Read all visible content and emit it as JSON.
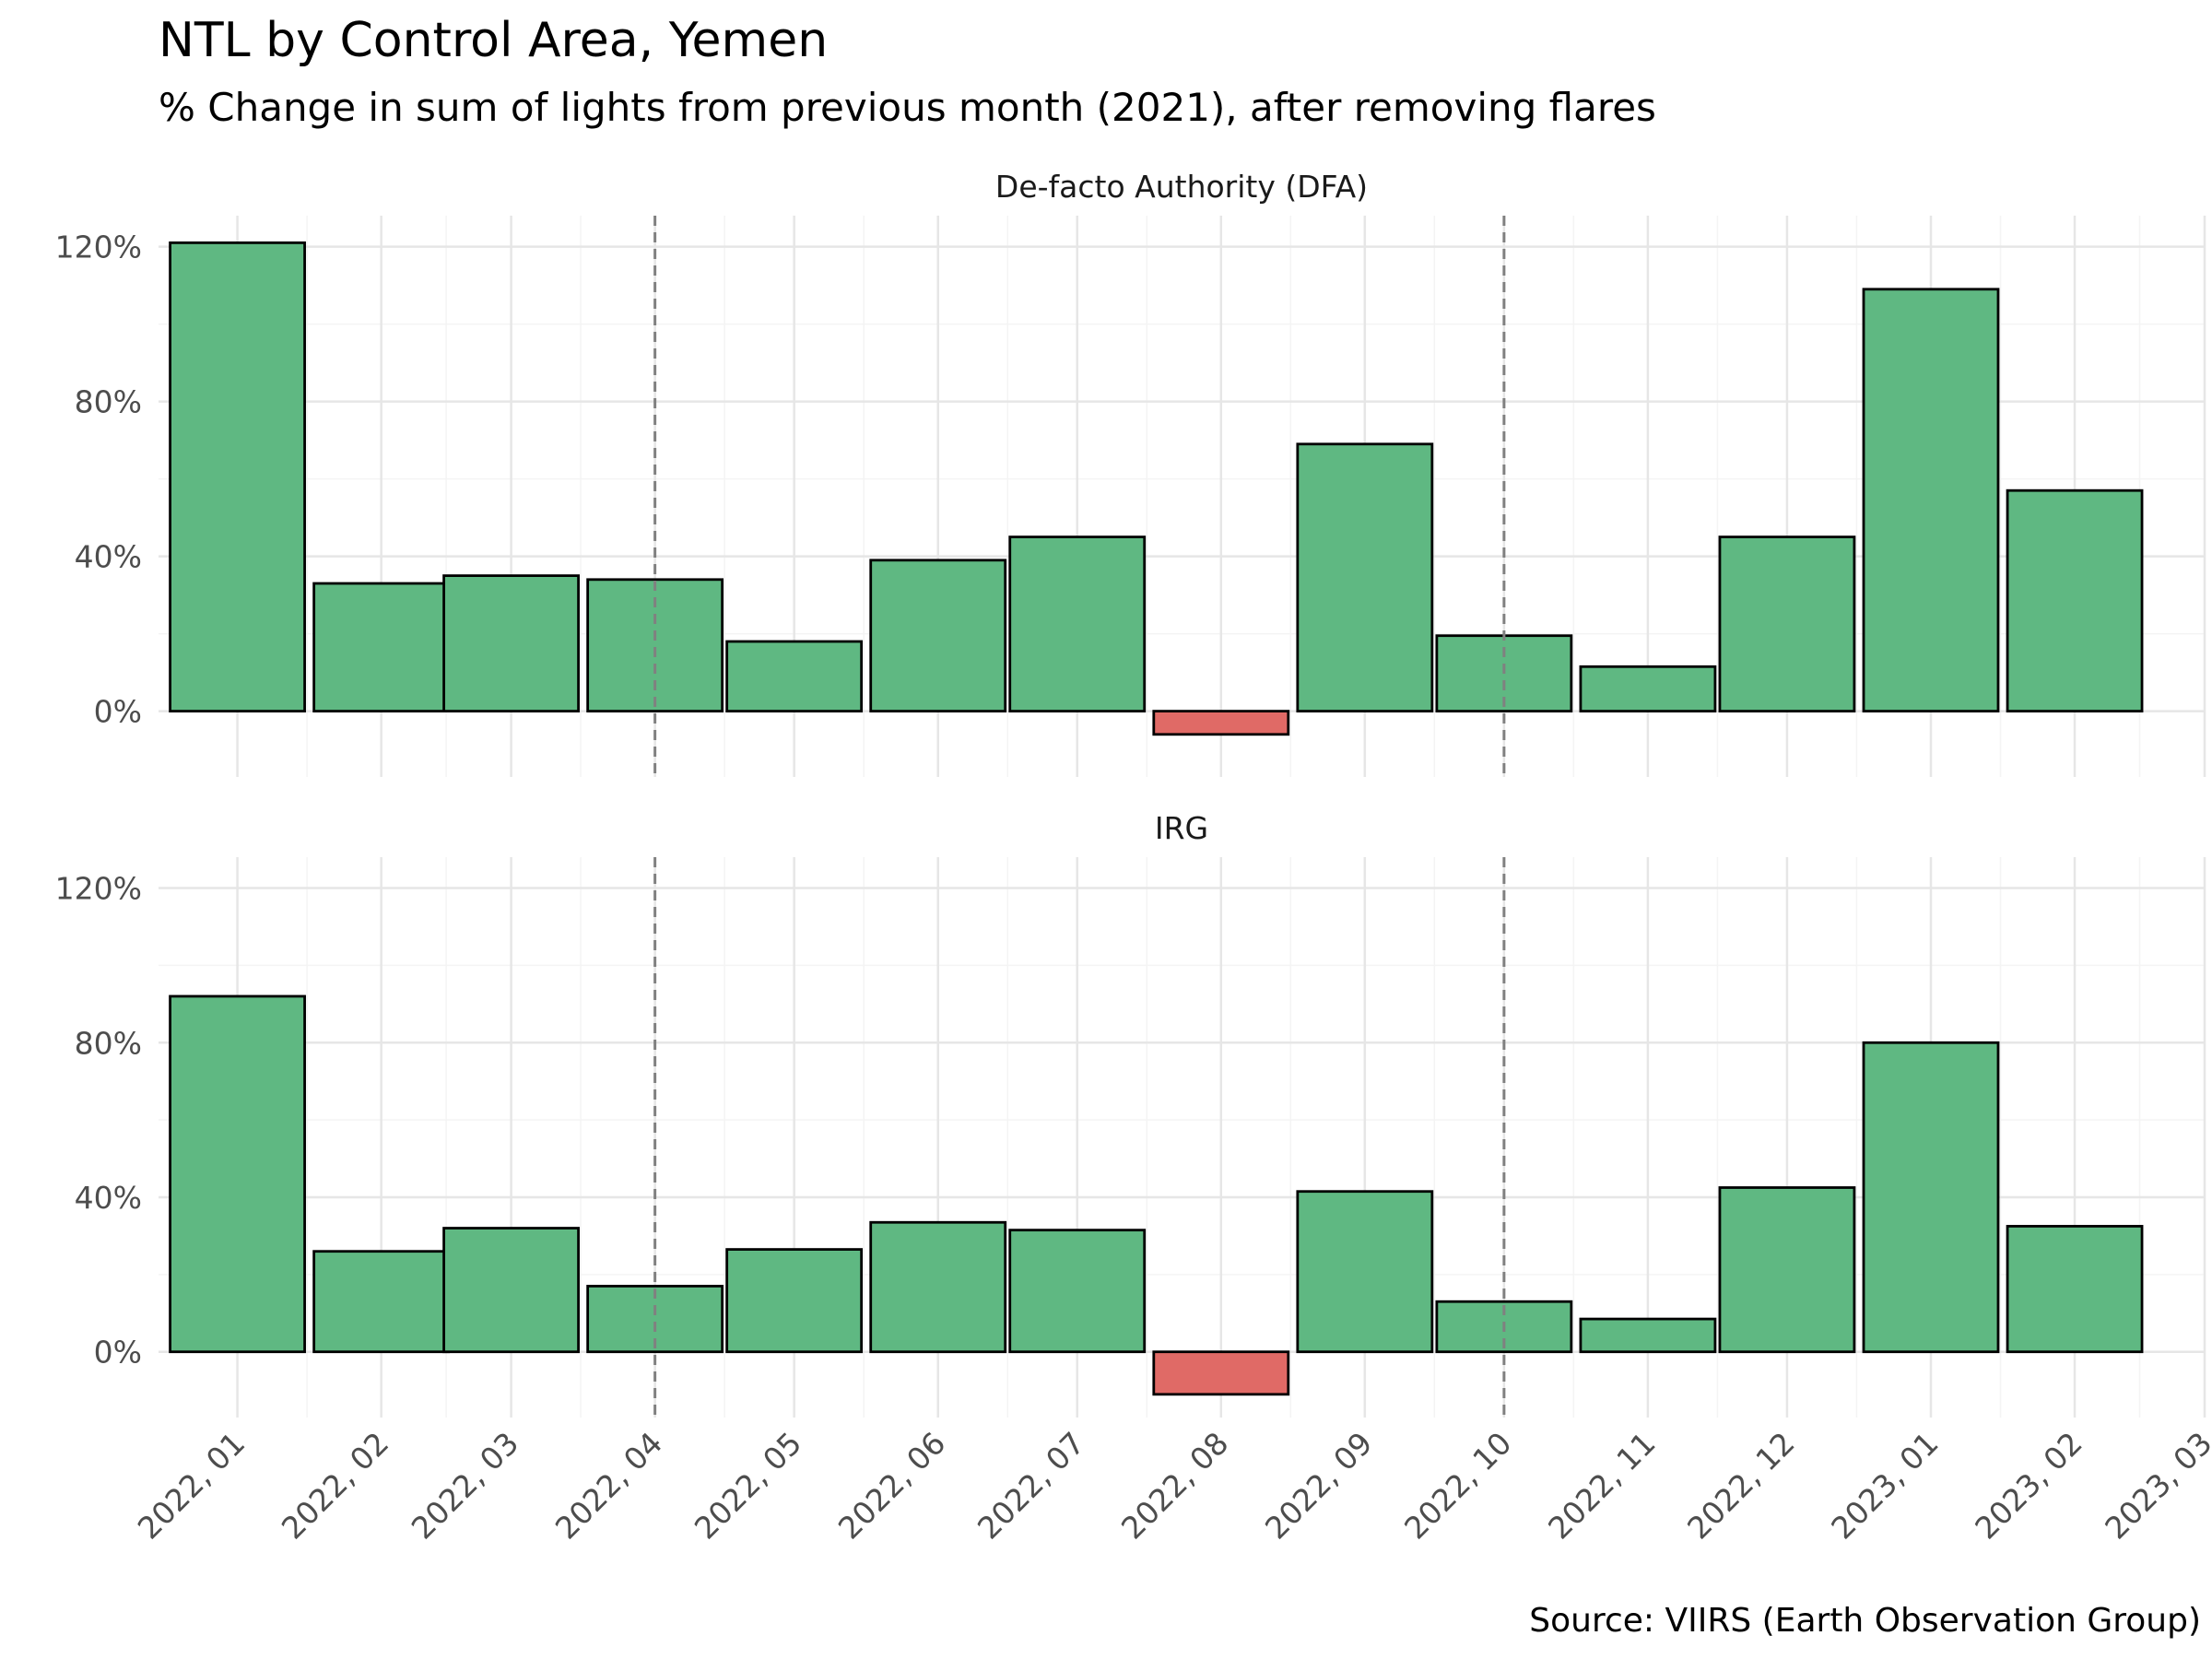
{
  "title": "NTL by Control Area, Yemen",
  "subtitle": "% Change in sum of lights from previous month (2021), after removing flares",
  "source": "Source: VIIRS (Earth Observation Group)",
  "chart_data": {
    "type": "bar",
    "x_ticks": [
      "2022, 01",
      "2022, 02",
      "2022, 03",
      "2022, 04",
      "2022, 05",
      "2022, 06",
      "2022, 07",
      "2022, 08",
      "2022, 09",
      "2022, 10",
      "2022, 11",
      "2022, 12",
      "2023, 01",
      "2023, 02",
      "2023, 03"
    ],
    "bar_dates": [
      "2022-01-01",
      "2022-02-01",
      "2022-03-01",
      "2022-04-01",
      "2022-05-01",
      "2022-06-01",
      "2022-07-01",
      "2022-08-01",
      "2022-09-01",
      "2022-10-01",
      "2022-11-01",
      "2022-12-01",
      "2023-01-01",
      "2023-02-01"
    ],
    "x_range": [
      "2021-12-15",
      "2023-03-01"
    ],
    "vlines": [
      "2022-04-01",
      "2022-10-01"
    ],
    "y_ticks": [
      0,
      40,
      80,
      120
    ],
    "y_tick_labels": [
      "0%",
      "40%",
      "80%",
      "120%"
    ],
    "ylim": [
      -17,
      128
    ],
    "grid": true,
    "colors": {
      "positive": "#5fb882",
      "negative": "#e06a66",
      "outline": "#000000",
      "vline": "#808080"
    },
    "panels": [
      {
        "title": "De-facto Authority (DFA)",
        "values": [
          121,
          33,
          35,
          34,
          18,
          39,
          45,
          -6,
          69,
          19.5,
          11.5,
          45,
          109,
          57
        ]
      },
      {
        "title": "IRG",
        "values": [
          92,
          26,
          32,
          17,
          26.5,
          33.5,
          31.5,
          -11,
          41.5,
          13,
          8.5,
          42.5,
          80,
          32.5
        ]
      }
    ]
  }
}
